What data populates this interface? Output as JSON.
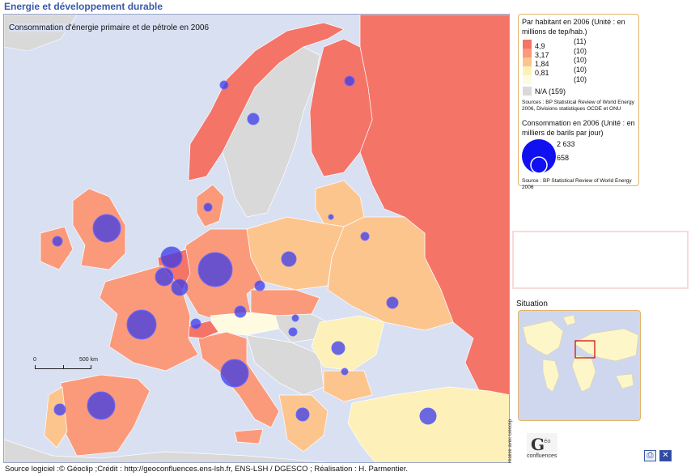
{
  "app_title": "Energie et développement durable",
  "map": {
    "title": "Consommation d'énergie primaire et de pétrole en 2006",
    "scale_labels": [
      "0",
      "500 km"
    ],
    "credit_vertical": "réalisé avec Géoclip"
  },
  "legend": {
    "choropleth_title": "Par habitant en 2006 (Unité : en millions de tep/hab.)",
    "classes": [
      {
        "value": "4,9",
        "count": "(11)",
        "color": "#f47468"
      },
      {
        "value": "3,17",
        "count": "(10)",
        "color": "#fb9a7a"
      },
      {
        "value": "1,84",
        "count": "(10)",
        "color": "#fdc58e"
      },
      {
        "value": "0,81",
        "count": "(10)",
        "color": "#fdf0b8"
      },
      {
        "value": "",
        "count": "(10)",
        "color": "#fffbe0"
      }
    ],
    "na": {
      "label": "N/A (159)",
      "color": "#d9d9d9"
    },
    "source1": "Sources : BP Statistical Review of World Energy 2006, Divisions statistiques OCDE et ONU",
    "proportional_title": "Consommation en 2006 (Unité : en milliers de barils par jour)",
    "proportional_values": [
      "2 633",
      "658"
    ],
    "circle_color": "#2a2ae8",
    "source2": "Source : BP Statistical Review of World Energy 2006"
  },
  "situation": {
    "label": "Situation"
  },
  "logo": {
    "text": "confluences",
    "mark": "Géo"
  },
  "buttons": {
    "print_icon": "print-icon",
    "close_icon": "close-icon"
  },
  "footer": "Source logiciel :© Géoclip ;Crédit : http://geoconfluences.ens-lsh.fr, ENS-LSH / DGESCO ; Réalisation : H. Parmentier."
}
